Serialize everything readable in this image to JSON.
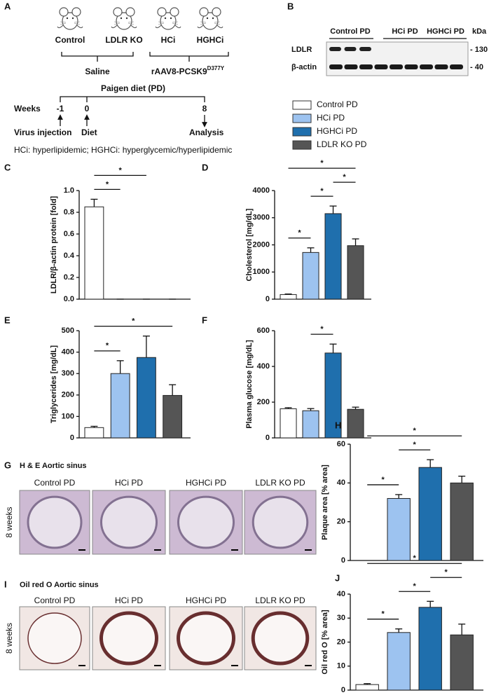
{
  "schematic": {
    "letter": "A",
    "groups": [
      "Control",
      "LDLR KO",
      "HCi",
      "HGHCi"
    ],
    "treatments": [
      "Saline",
      "rAAV8-PCSK9"
    ],
    "treatment_superscript": "D377Y",
    "diet": "Paigen diet (PD)",
    "weeks_label": "Weeks",
    "timepoints": [
      {
        "week": "-1",
        "event": "Virus injection"
      },
      {
        "week": "0",
        "event": "Diet"
      },
      {
        "week": "8",
        "event": "Analysis"
      }
    ],
    "footnote": "HCi: hyperlipidemic; HGHCi: hyperglycemic/hyperlipidemic"
  },
  "blot": {
    "letter": "B",
    "lanes": [
      "Control PD",
      "HCi PD",
      "HGHCi PD"
    ],
    "unit": "kDa",
    "proteins": [
      {
        "name": "LDLR",
        "size": "- 130"
      },
      {
        "name": "β-actin",
        "size": "- 40"
      }
    ]
  },
  "legend": [
    {
      "name": "Control PD",
      "color": "#ffffff"
    },
    {
      "name": "HCi PD",
      "color": "#9dc3f0"
    },
    {
      "name": "HGHCi PD",
      "color": "#1f6fad"
    },
    {
      "name": "LDLR KO PD",
      "color": "#555555"
    }
  ],
  "chart_data": [
    {
      "type": "bar",
      "letter": "C",
      "ylabel": "LDLR/β-actin protein [fold]",
      "values": [
        0.85,
        0,
        0,
        0
      ],
      "errors": [
        0.07,
        0,
        0,
        0
      ],
      "ylim": [
        0,
        1
      ],
      "yticks": [
        {
          "value": 0,
          "label": "0.0"
        },
        0.2,
        0.4,
        0.6,
        0.8,
        {
          "value": 1,
          "label": "1.0"
        }
      ],
      "significance": [
        {
          "from": 0,
          "to": 1,
          "label": "*"
        },
        {
          "from": 0,
          "to": 2,
          "label": "*"
        }
      ]
    },
    {
      "type": "bar",
      "letter": "D",
      "ylabel": "Cholesterol [mg/dL]",
      "values": [
        170,
        1720,
        3150,
        1970
      ],
      "errors": [
        20,
        170,
        280,
        250
      ],
      "ylim": [
        0,
        4000
      ],
      "yticks": [
        0,
        1000,
        2000,
        3000,
        4000
      ],
      "significance": [
        {
          "from": 0,
          "to": 1,
          "label": "*"
        },
        {
          "from": 1,
          "to": 2,
          "label": "*"
        },
        {
          "from": 2,
          "to": 3,
          "label": "*"
        },
        {
          "from": 0,
          "to": 3,
          "label": "*"
        }
      ]
    },
    {
      "type": "bar",
      "letter": "E",
      "ylabel": "Triglycerides [mg/dL]",
      "values": [
        48,
        300,
        375,
        198
      ],
      "errors": [
        6,
        60,
        100,
        50
      ],
      "ylim": [
        0,
        500
      ],
      "yticks": [
        0,
        100,
        200,
        300,
        400,
        500
      ],
      "significance": [
        {
          "from": 0,
          "to": 1,
          "label": "*"
        },
        {
          "from": 0,
          "to": 3,
          "label": "*"
        }
      ]
    },
    {
      "type": "bar",
      "letter": "F",
      "ylabel": "Plasma glucose [mg/dL]",
      "values": [
        163,
        152,
        475,
        160
      ],
      "errors": [
        6,
        12,
        50,
        12
      ],
      "ylim": [
        0,
        600
      ],
      "yticks": [
        0,
        200,
        400,
        600
      ],
      "significance": [
        {
          "from": 1,
          "to": 2,
          "label": "*"
        }
      ]
    },
    {
      "type": "bar",
      "letter": "H",
      "ylabel": "Plaque area [% area]",
      "values": [
        null,
        32,
        48,
        40
      ],
      "errors": [
        null,
        2,
        4,
        3.5
      ],
      "ylim": [
        0,
        60
      ],
      "yticks": [
        0,
        20,
        40,
        60
      ],
      "significance": [
        {
          "from": 0,
          "to": 1,
          "label": "*"
        },
        {
          "from": 1,
          "to": 2,
          "label": "*"
        },
        {
          "from": 0,
          "to": 3,
          "label": "*"
        }
      ]
    },
    {
      "type": "bar",
      "letter": "J",
      "ylabel": "Oil red O [% area]",
      "values": [
        2.3,
        24,
        34.5,
        23
      ],
      "errors": [
        0.4,
        1.5,
        2.5,
        4.5
      ],
      "ylim": [
        0,
        40
      ],
      "yticks": [
        0,
        10,
        20,
        30,
        40
      ],
      "significance": [
        {
          "from": 0,
          "to": 1,
          "label": "*"
        },
        {
          "from": 1,
          "to": 2,
          "label": "*"
        },
        {
          "from": 2,
          "to": 3,
          "label": "*"
        },
        {
          "from": 0,
          "to": 3,
          "label": "*"
        }
      ]
    }
  ],
  "histology": [
    {
      "letter": "G",
      "title": "H & E Aortic sinus",
      "row_label": "8 weeks",
      "images": [
        "Control PD",
        "HCi PD",
        "HGHCi PD",
        "LDLR KO PD"
      ]
    },
    {
      "letter": "I",
      "title": "Oil red O Aortic sinus",
      "row_label": "8 weeks",
      "images": [
        "Control PD",
        "HCi PD",
        "HGHCi PD",
        "LDLR KO PD"
      ]
    }
  ]
}
